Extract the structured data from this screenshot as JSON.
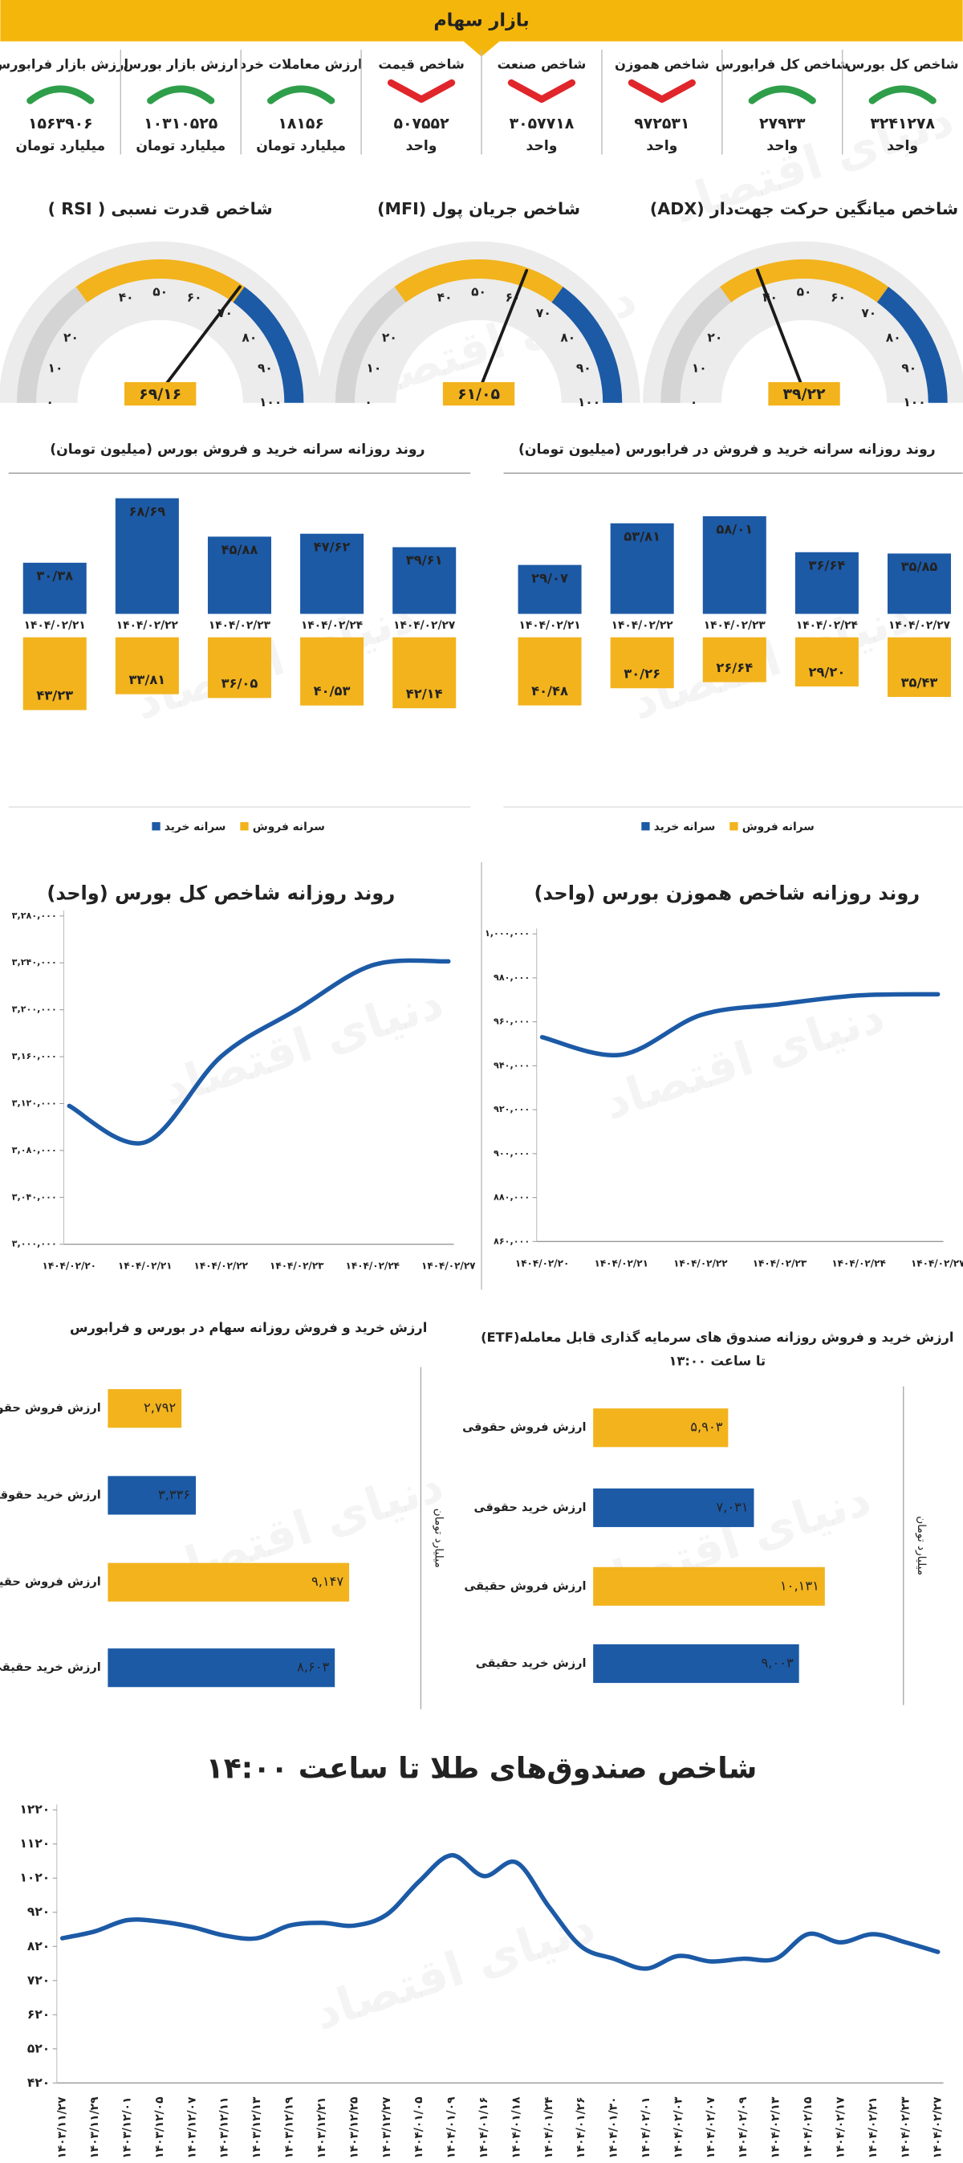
{
  "header": {
    "title": "بازار سهام"
  },
  "watermark": "دنیای اقتصاد",
  "trend_colors": {
    "up": "#2f9e4a",
    "down": "#e0262b"
  },
  "indicators": [
    {
      "title": "شاخص کل بورس",
      "value": "۳۲۴۱۲۷۸",
      "unit": "واحد",
      "trend": "up"
    },
    {
      "title": "شاخص کل فرابورس",
      "value": "۲۷۹۳۳",
      "unit": "واحد",
      "trend": "up"
    },
    {
      "title": "شاخص هموزن",
      "value": "۹۷۲۵۳۱",
      "unit": "واحد",
      "trend": "down"
    },
    {
      "title": "شاخص صنعت",
      "value": "۳۰۵۷۷۱۸",
      "unit": "واحد",
      "trend": "down"
    },
    {
      "title": "شاخص قیمت",
      "value": "۵۰۷۵۵۲",
      "unit": "واحد",
      "trend": "down"
    },
    {
      "title": "ارزش معاملات خرد",
      "value": "۱۸۱۵۶",
      "unit": "میلیارد تومان",
      "trend": "up"
    },
    {
      "title": "ارزش بازار بورس",
      "value": "۱۰۳۱۰۵۲۵",
      "unit": "میلیارد تومان",
      "trend": "up"
    },
    {
      "title": "ارزش بازار فرابورس",
      "value": "۱۵۶۳۹۰۶",
      "unit": "میلیارد تومان",
      "trend": "up"
    }
  ],
  "chart_data": [
    {
      "type": "gauge",
      "title": "شاخص میانگین حرکت جهت‌دار (ADX)",
      "value": 39.22,
      "value_label": "۳۹/۲۲",
      "ylim": [
        0,
        100
      ],
      "yticks": [
        {
          "value": 0,
          "label": "۰"
        },
        {
          "value": 10,
          "label": "۱۰"
        },
        {
          "value": 20,
          "label": "۲۰"
        },
        {
          "value": 40,
          "label": "۴۰"
        },
        {
          "value": 50,
          "label": "۵۰"
        },
        {
          "value": 60,
          "label": "۶۰"
        },
        {
          "value": 70,
          "label": "۷۰"
        },
        {
          "value": 80,
          "label": "۸۰"
        },
        {
          "value": 90,
          "label": "۹۰"
        },
        {
          "value": 100,
          "label": "۱۰۰"
        }
      ],
      "bands": [
        {
          "from": 0,
          "to": 30,
          "color": "#d4d4d4"
        },
        {
          "from": 30,
          "to": 70,
          "color": "#f2b31d"
        },
        {
          "from": 70,
          "to": 100,
          "color": "#1c5aa6"
        }
      ]
    },
    {
      "type": "gauge",
      "title": "شاخص جریان پول (MFI)",
      "value": 61.05,
      "value_label": "۶۱/۰۵",
      "ylim": [
        0,
        100
      ],
      "yticks": [
        {
          "value": 0,
          "label": "۰"
        },
        {
          "value": 10,
          "label": "۱۰"
        },
        {
          "value": 20,
          "label": "۲۰"
        },
        {
          "value": 40,
          "label": "۴۰"
        },
        {
          "value": 50,
          "label": "۵۰"
        },
        {
          "value": 60,
          "label": "۶۰"
        },
        {
          "value": 70,
          "label": "۷۰"
        },
        {
          "value": 80,
          "label": "۸۰"
        },
        {
          "value": 90,
          "label": "۹۰"
        },
        {
          "value": 100,
          "label": "۱۰۰"
        }
      ],
      "bands": [
        {
          "from": 0,
          "to": 30,
          "color": "#d4d4d4"
        },
        {
          "from": 30,
          "to": 70,
          "color": "#f2b31d"
        },
        {
          "from": 70,
          "to": 100,
          "color": "#1c5aa6"
        }
      ]
    },
    {
      "type": "gauge",
      "title": "شاخص قدرت نسبی ( RSI )",
      "value": 69.16,
      "value_label": "۶۹/۱۶",
      "ylim": [
        0,
        100
      ],
      "yticks": [
        {
          "value": 0,
          "label": "۰"
        },
        {
          "value": 10,
          "label": "۱۰"
        },
        {
          "value": 20,
          "label": "۲۰"
        },
        {
          "value": 40,
          "label": "۴۰"
        },
        {
          "value": 50,
          "label": "۵۰"
        },
        {
          "value": 60,
          "label": "۶۰"
        },
        {
          "value": 70,
          "label": "۷۰"
        },
        {
          "value": 80,
          "label": "۸۰"
        },
        {
          "value": 90,
          "label": "۹۰"
        },
        {
          "value": 100,
          "label": "۱۰۰"
        }
      ],
      "bands": [
        {
          "from": 0,
          "to": 30,
          "color": "#d4d4d4"
        },
        {
          "from": 30,
          "to": 70,
          "color": "#f2b31d"
        },
        {
          "from": 70,
          "to": 100,
          "color": "#1c5aa6"
        }
      ]
    },
    {
      "type": "bar",
      "title": "روند روزانه سرانه خرید و فروش در فرابورس (میلیون تومان)",
      "categories": [
        "۱۴۰۴/۰۲/۲۱",
        "۱۴۰۴/۰۲/۲۲",
        "۱۴۰۴/۰۲/۲۳",
        "۱۴۰۴/۰۲/۲۴",
        "۱۴۰۴/۰۲/۲۷"
      ],
      "series": [
        {
          "name": "سرانه خرید",
          "color": "#1c5aa6",
          "values": [
            29.07,
            53.81,
            58.01,
            36.64,
            35.85
          ],
          "value_labels": [
            "۲۹/۰۷",
            "۵۳/۸۱",
            "۵۸/۰۱",
            "۳۶/۶۴",
            "۳۵/۸۵"
          ]
        },
        {
          "name": "سرانه فروش",
          "color": "#f2b31d",
          "values": [
            40.48,
            30.26,
            26.64,
            29.2,
            35.43
          ],
          "value_labels": [
            "۴۰/۴۸",
            "۳۰/۲۶",
            "۲۶/۶۴",
            "۲۹/۲۰",
            "۳۵/۴۳"
          ]
        }
      ]
    },
    {
      "type": "bar",
      "title": "روند روزانه سرانه خرید و فروش بورس (میلیون تومان)",
      "categories": [
        "۱۴۰۴/۰۲/۲۱",
        "۱۴۰۴/۰۲/۲۲",
        "۱۴۰۴/۰۲/۲۳",
        "۱۴۰۴/۰۲/۲۴",
        "۱۴۰۴/۰۲/۲۷"
      ],
      "series": [
        {
          "name": "سرانه خرید",
          "color": "#1c5aa6",
          "values": [
            30.38,
            68.69,
            45.88,
            47.62,
            39.61
          ],
          "value_labels": [
            "۳۰/۳۸",
            "۶۸/۶۹",
            "۴۵/۸۸",
            "۴۷/۶۲",
            "۳۹/۶۱"
          ]
        },
        {
          "name": "سرانه فروش",
          "color": "#f2b31d",
          "values": [
            43.23,
            33.81,
            36.05,
            40.53,
            42.14
          ],
          "value_labels": [
            "۴۳/۲۳",
            "۳۳/۸۱",
            "۳۶/۰۵",
            "۴۰/۵۳",
            "۴۲/۱۴"
          ]
        }
      ]
    },
    {
      "type": "line",
      "title": "روند روزانه شاخص هموزن بورس (واحد)",
      "color": "#1c5aa6",
      "categories": [
        "۱۴۰۴/۰۲/۲۰",
        "۱۴۰۴/۰۲/۲۱",
        "۱۴۰۴/۰۲/۲۲",
        "۱۴۰۴/۰۲/۲۳",
        "۱۴۰۴/۰۲/۲۴",
        "۱۴۰۴/۰۲/۲۷"
      ],
      "values": [
        953000,
        945000,
        963000,
        968000,
        972000,
        972531
      ],
      "ylim": [
        860000,
        1000000
      ],
      "yticks": [
        {
          "value": 860000,
          "label": "۸۶۰,۰۰۰"
        },
        {
          "value": 880000,
          "label": "۸۸۰,۰۰۰"
        },
        {
          "value": 900000,
          "label": "۹۰۰,۰۰۰"
        },
        {
          "value": 920000,
          "label": "۹۲۰,۰۰۰"
        },
        {
          "value": 940000,
          "label": "۹۴۰,۰۰۰"
        },
        {
          "value": 960000,
          "label": "۹۶۰,۰۰۰"
        },
        {
          "value": 980000,
          "label": "۹۸۰,۰۰۰"
        },
        {
          "value": 1000000,
          "label": "۱,۰۰۰,۰۰۰"
        }
      ]
    },
    {
      "type": "line",
      "title": "روند روزانه شاخص کل بورس (واحد)",
      "color": "#1c5aa6",
      "categories": [
        "۱۴۰۴/۰۲/۲۰",
        "۱۴۰۴/۰۲/۲۱",
        "۱۴۰۴/۰۲/۲۲",
        "۱۴۰۴/۰۲/۲۳",
        "۱۴۰۴/۰۲/۲۴",
        "۱۴۰۴/۰۲/۲۷"
      ],
      "values": [
        3118000,
        3087000,
        3160000,
        3200000,
        3238000,
        3241278
      ],
      "ylim": [
        3000000,
        3280000
      ],
      "yticks": [
        {
          "value": 3000000,
          "label": "۳,۰۰۰,۰۰۰"
        },
        {
          "value": 3040000,
          "label": "۳,۰۴۰,۰۰۰"
        },
        {
          "value": 3080000,
          "label": "۳,۰۸۰,۰۰۰"
        },
        {
          "value": 3120000,
          "label": "۳,۱۲۰,۰۰۰"
        },
        {
          "value": 3160000,
          "label": "۳,۱۶۰,۰۰۰"
        },
        {
          "value": 3200000,
          "label": "۳,۲۰۰,۰۰۰"
        },
        {
          "value": 3240000,
          "label": "۳,۲۴۰,۰۰۰"
        },
        {
          "value": 3280000,
          "label": "۳,۲۸۰,۰۰۰"
        }
      ]
    },
    {
      "type": "barh",
      "title": "ارزش خرید و فروش روزانه صندوق های سرمایه گذاری قابل معامله(ETF)",
      "subtitle": "تا ساعت ۱۳:۰۰",
      "axis_label": "میلیارد تومان",
      "categories": [
        "ارزش فروش حقوقی",
        "ارزش خرید حقوقی",
        "ارزش فروش حقیقی",
        "ارزش خرید حقیقی"
      ],
      "values": [
        5903,
        7031,
        10131,
        9003
      ],
      "value_labels": [
        "۵,۹۰۳",
        "۷,۰۳۱",
        "۱۰,۱۳۱",
        "۹,۰۰۳"
      ],
      "colors": [
        "#f2b31d",
        "#1c5aa6",
        "#f2b31d",
        "#1c5aa6"
      ]
    },
    {
      "type": "barh",
      "title": "ارزش خرید و فروش روزانه سهام در بورس و فرابورس",
      "axis_label": "میلیارد تومان",
      "categories": [
        "ارزش فروش حقوقی",
        "ارزش خرید حقوقی",
        "ارزش فروش حقیقی",
        "ارزش خرید حقیقی"
      ],
      "values": [
        2792,
        3336,
        9147,
        8603
      ],
      "value_labels": [
        "۲,۷۹۲",
        "۳,۳۳۶",
        "۹,۱۴۷",
        "۸,۶۰۳"
      ],
      "colors": [
        "#f2b31d",
        "#1c5aa6",
        "#f2b31d",
        "#1c5aa6"
      ]
    },
    {
      "type": "line",
      "title": "شاخص صندوق‌های طلا تا ساعت ۱۴:۰۰",
      "color": "#1c5aa6",
      "categories": [
        "۱۴۰۳/۱۱/۲۷",
        "۱۴۰۳/۱۱/۲۹",
        "۱۴۰۳/۱۲/۰۱",
        "۱۴۰۳/۱۲/۰۵",
        "۱۴۰۳/۱۲/۰۷",
        "۱۴۰۳/۱۲/۱۱",
        "۱۴۰۳/۱۲/۱۳",
        "۱۴۰۳/۱۲/۱۹",
        "۱۴۰۳/۱۲/۲۱",
        "۱۴۰۳/۱۲/۲۵",
        "۱۴۰۳/۱۲/۲۷",
        "۱۴۰۴/۰۱/۰۵",
        "۱۴۰۴/۰۱/۰۹",
        "۱۴۰۴/۰۱/۱۶",
        "۱۴۰۴/۰۱/۱۸",
        "۱۴۰۴/۰۱/۲۴",
        "۱۴۰۴/۰۱/۲۶",
        "۱۴۰۴/۰۱/۳۰",
        "۱۴۰۴/۰۲/۰۱",
        "۱۴۰۴/۰۲/۰۳",
        "۱۴۰۴/۰۲/۰۷",
        "۱۴۰۴/۰۲/۰۹",
        "۱۴۰۴/۰۲/۱۳",
        "۱۴۰۴/۰۲/۱۵",
        "۱۴۰۴/۰۲/۱۷",
        "۱۴۰۴/۰۲/۲۱",
        "۱۴۰۴/۰۲/۲۳",
        "۱۴۰۴/۰۲/۲۷"
      ],
      "values": [
        844,
        864,
        897,
        893,
        877,
        852,
        844,
        881,
        889,
        881,
        913,
        1010,
        1087,
        1026,
        1066,
        937,
        820,
        784,
        755,
        792,
        776,
        784,
        784,
        856,
        832,
        856,
        832,
        804
      ],
      "ylim": [
        420,
        1220
      ],
      "yticks": [
        {
          "value": 420,
          "label": "۴۲۰"
        },
        {
          "value": 520,
          "label": "۵۲۰"
        },
        {
          "value": 620,
          "label": "۶۲۰"
        },
        {
          "value": 720,
          "label": "۷۲۰"
        },
        {
          "value": 820,
          "label": "۸۲۰"
        },
        {
          "value": 920,
          "label": "۹۲۰"
        },
        {
          "value": 1020,
          "label": "۱۰۲۰"
        },
        {
          "value": 1120,
          "label": "۱۱۲۰"
        },
        {
          "value": 1220,
          "label": "۱۲۲۰"
        }
      ]
    }
  ]
}
